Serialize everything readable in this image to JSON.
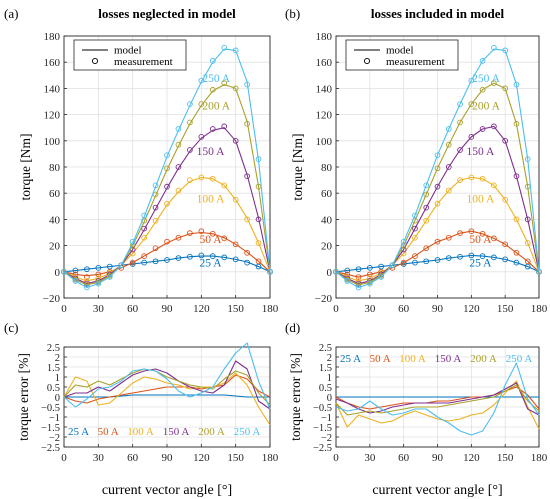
{
  "chart_data": [
    {
      "id": "a",
      "panel_label": "(a)",
      "type": "line",
      "title": "losses neglected in model",
      "xlabel": "",
      "ylabel": "torque [Nm]",
      "xlim": [
        0,
        180
      ],
      "ylim": [
        -20,
        180
      ],
      "xticks": [
        0,
        30,
        60,
        90,
        120,
        150,
        180
      ],
      "yticks": [
        -20,
        0,
        20,
        40,
        60,
        80,
        100,
        120,
        140,
        160,
        180
      ],
      "grid": true,
      "legend": {
        "placement": "top-left",
        "entries": [
          "model",
          "measurement"
        ]
      },
      "x": [
        0,
        10,
        20,
        30,
        40,
        50,
        60,
        70,
        80,
        90,
        100,
        110,
        120,
        130,
        140,
        150,
        160,
        170,
        180
      ],
      "series": [
        {
          "name": "25 A",
          "label": "25 A",
          "color": "#0072BD",
          "label_at": [
            128,
            4
          ],
          "model": [
            0,
            1,
            2,
            3,
            4,
            5,
            6,
            7,
            8,
            9,
            10.5,
            11.5,
            12,
            12,
            11,
            9.5,
            7.5,
            4,
            0
          ],
          "measured": [
            0,
            1,
            2,
            3,
            4,
            5,
            6,
            7,
            8,
            9,
            10.5,
            11.5,
            12.5,
            12,
            11,
            9.5,
            7,
            4,
            0
          ]
        },
        {
          "name": "50 A",
          "label": "50 A",
          "color": "#D95319",
          "label_at": [
            128,
            22
          ],
          "model": [
            0,
            -2,
            -3,
            -2,
            0,
            3,
            7,
            12,
            17,
            22,
            26,
            29,
            30,
            29,
            26,
            21,
            15,
            8,
            0
          ],
          "measured": [
            0,
            -2,
            -4,
            -2,
            0,
            3,
            7,
            12,
            18,
            23,
            26,
            29.5,
            31,
            29,
            25.5,
            21,
            14.5,
            8,
            0
          ]
        },
        {
          "name": "100 A",
          "label": "100 A",
          "color": "#EDB120",
          "label_at": [
            128,
            53
          ],
          "model": [
            0,
            -4,
            -7,
            -5,
            -1,
            5,
            14,
            25,
            38,
            51,
            61,
            69,
            72,
            71,
            66,
            55,
            41,
            22,
            0
          ],
          "measured": [
            0,
            -4,
            -7,
            -5,
            -1,
            5,
            14,
            26,
            39,
            52,
            62,
            70,
            72,
            71,
            66,
            55,
            40,
            22,
            0
          ]
        },
        {
          "name": "150 A",
          "label": "150 A",
          "color": "#7E2F8E",
          "label_at": [
            128,
            89
          ],
          "model": [
            0,
            -5,
            -9,
            -7,
            -2,
            5,
            17,
            32,
            48,
            64,
            79,
            92,
            102,
            108,
            110,
            100,
            74,
            41,
            0
          ],
          "measured": [
            0,
            -5,
            -9,
            -7,
            -2,
            5,
            17,
            33,
            49,
            65,
            80,
            93,
            103,
            109,
            111,
            100,
            73,
            40,
            0
          ]
        },
        {
          "name": "200 A",
          "label": "200 A",
          "color": "#A8A02C",
          "label_at": [
            133,
            124
          ],
          "model": [
            0,
            -6,
            -10,
            -8,
            -3,
            5,
            20,
            38,
            58,
            78,
            96,
            113,
            127,
            138,
            143,
            140,
            115,
            65,
            0
          ],
          "measured": [
            0,
            -6,
            -10,
            -8,
            -3,
            5,
            20,
            39,
            59,
            79,
            97,
            114,
            128,
            139,
            144,
            140,
            113,
            65,
            0
          ]
        },
        {
          "name": "250 A",
          "label": "250 A",
          "color": "#4DBEEE",
          "label_at": [
            133,
            145
          ],
          "model": [
            0,
            -7,
            -12,
            -9,
            -4,
            5,
            22,
            42,
            65,
            88,
            108,
            127,
            145,
            160,
            170,
            169,
            145,
            85,
            0
          ],
          "measured": [
            0,
            -7,
            -12,
            -9,
            -4,
            5,
            23,
            43,
            66,
            89,
            109,
            128,
            146,
            161,
            171,
            169,
            143,
            86,
            0
          ]
        }
      ]
    },
    {
      "id": "b",
      "panel_label": "(b)",
      "type": "line",
      "title": "losses included in model",
      "xlabel": "",
      "ylabel": "torque [Nm]",
      "xlim": [
        0,
        180
      ],
      "ylim": [
        -20,
        180
      ],
      "xticks": [
        0,
        30,
        60,
        90,
        120,
        150,
        180
      ],
      "yticks": [
        -20,
        0,
        20,
        40,
        60,
        80,
        100,
        120,
        140,
        160,
        180
      ],
      "grid": true,
      "legend": {
        "placement": "top-left",
        "entries": [
          "model",
          "measurement"
        ]
      },
      "x": [
        0,
        10,
        20,
        30,
        40,
        50,
        60,
        70,
        80,
        90,
        100,
        110,
        120,
        130,
        140,
        150,
        160,
        170,
        180
      ],
      "series": [
        {
          "name": "25 A",
          "label": "25 A",
          "color": "#0072BD",
          "label_at": [
            128,
            4
          ],
          "model": [
            0,
            1,
            2,
            3,
            4,
            5,
            6,
            7,
            8,
            9,
            10.5,
            11.5,
            12.5,
            12,
            11,
            9.5,
            7,
            4,
            0
          ],
          "measured": [
            0,
            1,
            2,
            3,
            4,
            5,
            6,
            7,
            8,
            9,
            10.5,
            11.5,
            12.5,
            12,
            11,
            9.5,
            7,
            4,
            0
          ]
        },
        {
          "name": "50 A",
          "label": "50 A",
          "color": "#D95319",
          "label_at": [
            128,
            22
          ],
          "model": [
            0,
            -2,
            -4,
            -2,
            0,
            3,
            7,
            12,
            18,
            23,
            26,
            29.5,
            31,
            29,
            25.5,
            21,
            14.5,
            8,
            0
          ],
          "measured": [
            0,
            -2,
            -4,
            -2,
            0,
            3,
            7,
            12,
            18,
            23,
            26,
            29.5,
            31,
            29,
            25.5,
            21,
            14.5,
            8,
            0
          ]
        },
        {
          "name": "100 A",
          "label": "100 A",
          "color": "#EDB120",
          "label_at": [
            128,
            53
          ],
          "model": [
            0,
            -4,
            -7,
            -5,
            -1,
            5,
            14,
            26,
            39,
            52,
            62,
            70,
            72,
            71,
            66,
            55,
            40,
            22,
            0
          ],
          "measured": [
            0,
            -4,
            -7,
            -5,
            -1,
            5,
            14,
            26,
            39,
            52,
            62,
            70,
            72,
            71,
            66,
            55,
            40,
            22,
            0
          ]
        },
        {
          "name": "150 A",
          "label": "150 A",
          "color": "#7E2F8E",
          "label_at": [
            128,
            89
          ],
          "model": [
            0,
            -5,
            -9,
            -7,
            -2,
            5,
            17,
            33,
            49,
            65,
            80,
            93,
            103,
            109,
            111,
            100,
            73,
            40,
            0
          ],
          "measured": [
            0,
            -5,
            -9,
            -7,
            -2,
            5,
            17,
            33,
            49,
            65,
            80,
            93,
            103,
            109,
            111,
            100,
            73,
            40,
            0
          ]
        },
        {
          "name": "200 A",
          "label": "200 A",
          "color": "#A8A02C",
          "label_at": [
            133,
            124
          ],
          "model": [
            0,
            -6,
            -10,
            -8,
            -3,
            5,
            20,
            39,
            59,
            79,
            97,
            114,
            128,
            139,
            144,
            140,
            113,
            65,
            0
          ],
          "measured": [
            0,
            -6,
            -10,
            -8,
            -3,
            5,
            20,
            39,
            59,
            79,
            97,
            114,
            128,
            139,
            144,
            140,
            113,
            65,
            0
          ]
        },
        {
          "name": "250 A",
          "label": "250 A",
          "color": "#4DBEEE",
          "label_at": [
            133,
            145
          ],
          "model": [
            0,
            -7,
            -12,
            -9,
            -4,
            5,
            23,
            43,
            66,
            89,
            109,
            128,
            146,
            161,
            170,
            169,
            143,
            86,
            0
          ],
          "measured": [
            0,
            -7,
            -12,
            -9,
            -4,
            5,
            23,
            43,
            66,
            89,
            109,
            128,
            146,
            161,
            171,
            169,
            143,
            86,
            0
          ]
        }
      ]
    },
    {
      "id": "c",
      "panel_label": "(c)",
      "type": "line",
      "title": "",
      "xlabel": "current vector angle [°]",
      "ylabel": "torque error [%]",
      "xlim": [
        0,
        180
      ],
      "ylim": [
        -2.5,
        2.5
      ],
      "xticks": [
        0,
        30,
        60,
        90,
        120,
        150,
        180
      ],
      "yticks": [
        -2.5,
        -2,
        -1.5,
        -1,
        -0.5,
        0,
        0.5,
        1,
        1.5,
        2,
        2.5
      ],
      "grid": true,
      "legend": {
        "placement": "bottom-left",
        "orientation": "horizontal"
      },
      "x": [
        0,
        10,
        20,
        30,
        40,
        50,
        60,
        70,
        80,
        90,
        100,
        110,
        120,
        130,
        140,
        150,
        160,
        170,
        180
      ],
      "series": [
        {
          "name": "25 A",
          "color": "#0072BD",
          "values": [
            0,
            0,
            0,
            0,
            0,
            0.05,
            0.1,
            0.1,
            0.1,
            0.1,
            0.1,
            0.1,
            0.1,
            0.1,
            0.1,
            0.05,
            0,
            0,
            0
          ]
        },
        {
          "name": "50 A",
          "color": "#D95319",
          "values": [
            0,
            -0.2,
            -0.3,
            -0.1,
            0,
            0.1,
            0.2,
            0.3,
            0.4,
            0.5,
            0.5,
            0.5,
            0.4,
            0.5,
            0.6,
            1.1,
            0.9,
            0.3,
            0
          ]
        },
        {
          "name": "100 A",
          "color": "#EDB120",
          "values": [
            0,
            1.0,
            0.8,
            -0.4,
            -0.3,
            0.2,
            0.7,
            1.0,
            0.9,
            0.7,
            0.6,
            0.4,
            0.5,
            0.5,
            0.7,
            1.2,
            0.6,
            -0.5,
            -1.4
          ]
        },
        {
          "name": "150 A",
          "color": "#7E2F8E",
          "values": [
            0,
            0.2,
            0.2,
            0.5,
            0.3,
            0.7,
            1.1,
            1.3,
            1.4,
            1.2,
            0.8,
            0.5,
            0.3,
            0.2,
            0.6,
            1.8,
            1.4,
            -0.2,
            -0.6
          ]
        },
        {
          "name": "200 A",
          "color": "#A8A02C",
          "values": [
            0,
            0.6,
            0.5,
            0.8,
            0.6,
            0.9,
            1.2,
            1.4,
            1.3,
            1.0,
            0.8,
            0.6,
            0.5,
            0.4,
            0.9,
            1.3,
            1.1,
            0.2,
            -0.4
          ]
        },
        {
          "name": "250 A",
          "color": "#4DBEEE",
          "values": [
            0,
            -0.5,
            -0.1,
            0.4,
            0.5,
            0.8,
            1.3,
            1.4,
            1.3,
            0.9,
            0.3,
            0.0,
            0.2,
            0.5,
            1.4,
            2.2,
            2.7,
            0.8,
            -0.6
          ]
        }
      ]
    },
    {
      "id": "d",
      "panel_label": "(d)",
      "type": "line",
      "title": "",
      "xlabel": "current vector angle [°]",
      "ylabel": "torque error [%]",
      "xlim": [
        0,
        180
      ],
      "ylim": [
        -2.5,
        2.5
      ],
      "xticks": [
        0,
        30,
        60,
        90,
        120,
        150,
        180
      ],
      "yticks": [
        -2.5,
        -2,
        -1.5,
        -1,
        -0.5,
        0,
        0.5,
        1,
        1.5,
        2,
        2.5
      ],
      "grid": true,
      "legend": {
        "placement": "top-left",
        "orientation": "horizontal"
      },
      "x": [
        0,
        10,
        20,
        30,
        40,
        50,
        60,
        70,
        80,
        90,
        100,
        110,
        120,
        130,
        140,
        150,
        160,
        170,
        180
      ],
      "series": [
        {
          "name": "25 A",
          "color": "#0072BD",
          "values": [
            0,
            0,
            0,
            0,
            0,
            0,
            0,
            0,
            0,
            0,
            0,
            0,
            0,
            0,
            0,
            0,
            0,
            0,
            0
          ]
        },
        {
          "name": "50 A",
          "color": "#D95319",
          "values": [
            0,
            -0.3,
            -0.5,
            -0.6,
            -0.5,
            -0.4,
            -0.3,
            -0.3,
            -0.3,
            -0.2,
            -0.2,
            -0.1,
            0,
            0,
            0.1,
            0.3,
            0.5,
            0.1,
            -0.6
          ]
        },
        {
          "name": "100 A",
          "color": "#EDB120",
          "values": [
            -0.3,
            -1.5,
            -0.9,
            -1.1,
            -1.3,
            -1.2,
            -0.9,
            -0.7,
            -0.9,
            -1.1,
            -1.2,
            -1.1,
            -0.9,
            -0.8,
            -0.4,
            0.2,
            0.8,
            -0.5,
            -1.6
          ]
        },
        {
          "name": "150 A",
          "color": "#7E2F8E",
          "values": [
            -0.1,
            -0.3,
            -0.6,
            -0.8,
            -0.7,
            -0.5,
            -0.4,
            -0.3,
            -0.3,
            -0.3,
            -0.3,
            -0.2,
            -0.1,
            0,
            0.1,
            0.4,
            0.7,
            -0.6,
            -0.9
          ]
        },
        {
          "name": "200 A",
          "color": "#A8A02C",
          "values": [
            -0.3,
            -0.9,
            -0.8,
            -0.7,
            -0.8,
            -0.7,
            -0.6,
            -0.5,
            -0.5,
            -0.5,
            -0.4,
            -0.3,
            -0.2,
            -0.1,
            0,
            0.3,
            0.6,
            -0.2,
            -0.7
          ]
        },
        {
          "name": "250 A",
          "color": "#4DBEEE",
          "values": [
            -0.5,
            -0.7,
            -0.6,
            -0.2,
            -0.6,
            -0.9,
            -0.8,
            -0.6,
            -0.6,
            -1.0,
            -1.3,
            -1.7,
            -1.9,
            -1.7,
            -0.8,
            0.6,
            1.7,
            -0.1,
            -0.9
          ]
        }
      ]
    }
  ]
}
